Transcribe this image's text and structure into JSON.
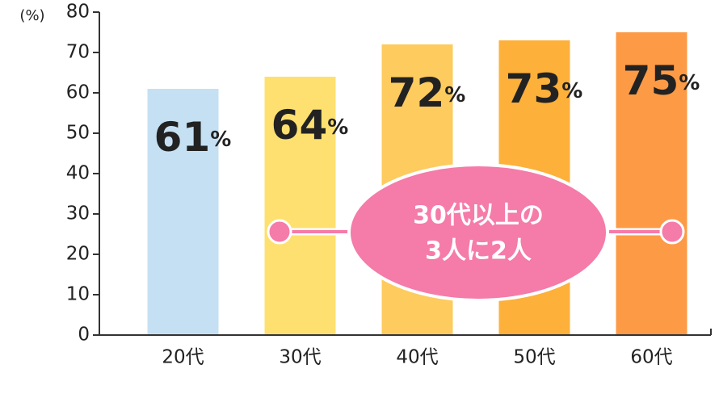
{
  "chart_data": {
    "type": "bar",
    "y_unit_label": "(%)",
    "categories": [
      "20代",
      "30代",
      "40代",
      "50代",
      "60代"
    ],
    "values": [
      61,
      64,
      72,
      73,
      75
    ],
    "value_labels": [
      "61%",
      "64%",
      "72%",
      "73%",
      "75%"
    ],
    "colors": [
      "#c5e0f3",
      "#fde06f",
      "#fdcb5e",
      "#fdb03a",
      "#fd9a45"
    ],
    "ylim": [
      0,
      80
    ],
    "yticks": [
      0,
      10,
      20,
      30,
      40,
      50,
      60,
      70,
      80
    ],
    "grid": false,
    "annotation": {
      "lines": [
        "30代以上の",
        "3人に2人"
      ],
      "color": "#f57ba9"
    }
  }
}
